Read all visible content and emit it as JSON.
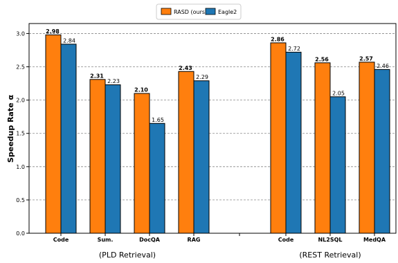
{
  "chart_data": {
    "type": "bar",
    "xlabel": "",
    "ylabel": "Speedup Rate α",
    "ylim": [
      0,
      3.15
    ],
    "yticks": [
      0.0,
      0.5,
      1.0,
      1.5,
      2.0,
      2.5,
      3.0
    ],
    "ytick_labels": [
      "0.0",
      "0.5",
      "1.0",
      "1.5",
      "2.0",
      "2.5",
      "3.0"
    ],
    "grid": "horizontal dashed",
    "legend_position": "top-center, above plot",
    "groups": [
      {
        "label": "(PLD Retrieval)",
        "categories": [
          "Code",
          "Sum.",
          "DocQA",
          "RAG"
        ]
      },
      {
        "label": "(REST Retrieval)",
        "categories": [
          "Code",
          "NL2SQL",
          "MedQA"
        ]
      }
    ],
    "categories": [
      "Code",
      "Sum.",
      "DocQA",
      "RAG",
      "Code",
      "NL2SQL",
      "MedQA"
    ],
    "series": [
      {
        "name": "RASD (ours)",
        "color": "#ff7f0e",
        "values": [
          2.98,
          2.31,
          2.1,
          2.43,
          2.86,
          2.56,
          2.57
        ],
        "labels_bold": true
      },
      {
        "name": "Eagle2",
        "color": "#1f77b4",
        "values": [
          2.84,
          2.23,
          1.65,
          2.29,
          2.72,
          2.05,
          2.46
        ],
        "labels_bold": false
      }
    ]
  }
}
